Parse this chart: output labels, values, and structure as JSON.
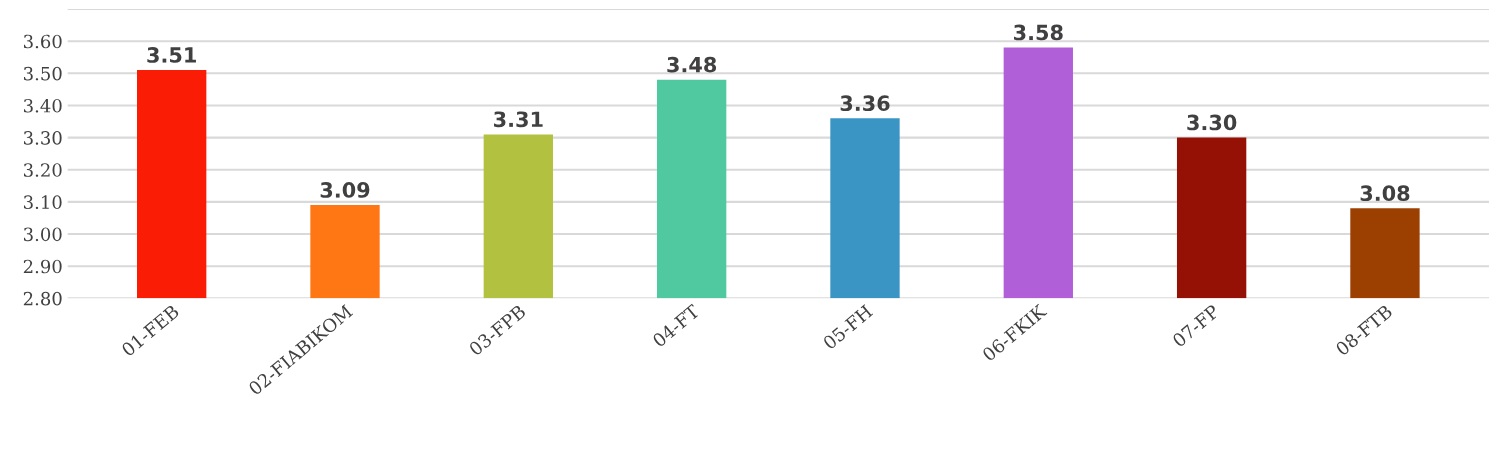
{
  "chart_data": {
    "type": "bar",
    "categories": [
      "01-FEB",
      "02-FIABIKOM",
      "03-FPB",
      "04-FT",
      "05-FH",
      "06-FKIK",
      "07-FP",
      "08-FTB"
    ],
    "values": [
      3.51,
      3.09,
      3.31,
      3.48,
      3.36,
      3.58,
      3.3,
      3.08
    ],
    "colors": [
      "#fa1c05",
      "#ff7714",
      "#b2c240",
      "#50c8a0",
      "#3a94c4",
      "#b05fd8",
      "#951005",
      "#9b4000"
    ],
    "ylim": [
      2.8,
      3.7
    ],
    "yticks": [
      {
        "value": 2.8,
        "label": "2.80"
      },
      {
        "value": 2.9,
        "label": "2.90"
      },
      {
        "value": 3.0,
        "label": "3.00"
      },
      {
        "value": 3.1,
        "label": "3.10"
      },
      {
        "value": 3.2,
        "label": "3.20"
      },
      {
        "value": 3.3,
        "label": "3.30"
      },
      {
        "value": 3.4,
        "label": "3.40"
      },
      {
        "value": 3.5,
        "label": "3.50"
      },
      {
        "value": 3.6,
        "label": "3.60"
      },
      {
        "value": 3.7,
        "label": null
      }
    ],
    "value_labels": [
      "3.51",
      "3.09",
      "3.31",
      "3.48",
      "3.36",
      "3.58",
      "3.30",
      "3.08"
    ],
    "grid": "y"
  }
}
